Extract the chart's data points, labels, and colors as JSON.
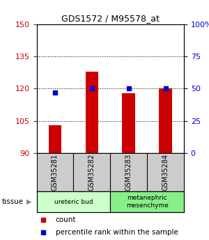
{
  "title": "GDS1572 / M95578_at",
  "samples": [
    "GSM35281",
    "GSM35282",
    "GSM35283",
    "GSM35284"
  ],
  "bar_values": [
    103,
    128,
    118,
    120
  ],
  "percentile_values": [
    47,
    50,
    50,
    50
  ],
  "bar_color": "#cc0000",
  "marker_color": "#0000cc",
  "ylim_left": [
    90,
    150
  ],
  "ylim_right": [
    0,
    100
  ],
  "yticks_left": [
    90,
    105,
    120,
    135,
    150
  ],
  "yticks_right": [
    0,
    25,
    50,
    75,
    100
  ],
  "grid_lines": [
    105,
    120,
    135
  ],
  "tissues": [
    {
      "label": "ureteric bud",
      "cols": [
        0,
        1
      ],
      "color": "#ccffcc"
    },
    {
      "label": "metanephric\nmesenchyme",
      "cols": [
        2,
        3
      ],
      "color": "#88ee88"
    }
  ],
  "tissue_label": "tissue",
  "legend_count": "count",
  "legend_pct": "percentile rank within the sample",
  "bg_color": "#ffffff",
  "sample_box_color": "#cccccc",
  "left_tick_color": "#cc0000",
  "right_tick_color": "#0000cc",
  "bar_width": 0.35
}
